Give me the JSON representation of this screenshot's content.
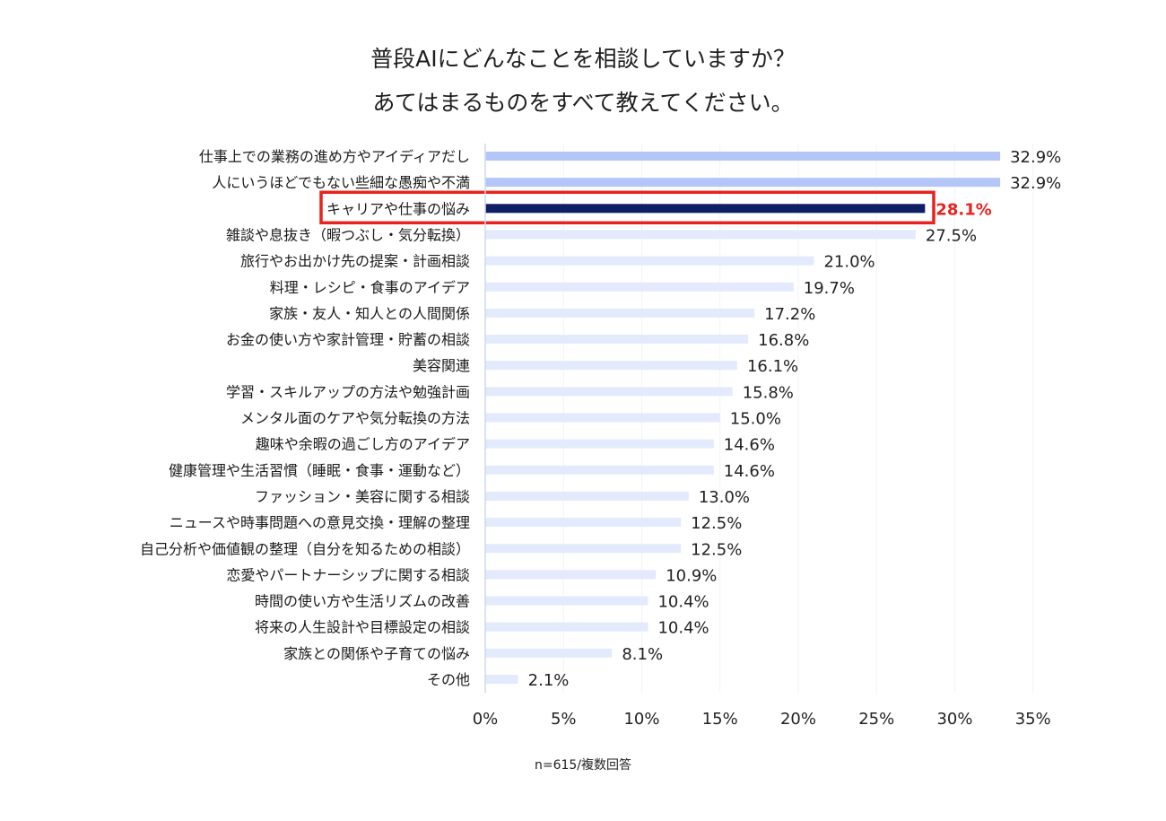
{
  "title_lines": [
    "普段AIにどんなことを相談していますか？",
    "あてはまるものをすべて教えてください。"
  ],
  "footnote": "n=615/複数回答",
  "colors": {
    "top_bar": "#b3c6f7",
    "other_bar": "#e3eafc",
    "highlight_bar": "#0f1f66",
    "highlight_box": "#e8231f",
    "highlight_text": "#e8231f",
    "axis": "#d0d8ee",
    "grid": "#f1f3f8"
  },
  "chart_data": {
    "type": "bar",
    "orientation": "horizontal",
    "categories": [
      "仕事上での業務の進め方やアイディアだし",
      "人にいうほどでもない些細な愚痴や不満",
      "キャリアや仕事の悩み",
      "雑談や息抜き（暇つぶし・気分転換）",
      "旅行やお出かけ先の提案・計画相談",
      "料理・レシピ・食事のアイデア",
      "家族・友人・知人との人間関係",
      "お金の使い方や家計管理・貯蓄の相談",
      "美容関連",
      "学習・スキルアップの方法や勉強計画",
      "メンタル面のケアや気分転換の方法",
      "趣味や余暇の過ごし方のアイデア",
      "健康管理や生活習慣（睡眠・食事・運動など）",
      "ファッション・美容に関する相談",
      "ニュースや時事問題への意見交換・理解の整理",
      "自己分析や価値観の整理（自分を知るための相談）",
      "恋愛やパートナーシップに関する相談",
      "時間の使い方や生活リズムの改善",
      "将来の人生設計や目標設定の相談",
      "家族との関係や子育ての悩み",
      "その他"
    ],
    "values": [
      32.9,
      32.9,
      28.1,
      27.5,
      21.0,
      19.7,
      17.2,
      16.8,
      16.1,
      15.8,
      15.0,
      14.6,
      14.6,
      13.0,
      12.5,
      12.5,
      10.9,
      10.4,
      10.4,
      8.1,
      2.1
    ],
    "value_labels": [
      "32.9%",
      "32.9%",
      "28.1%",
      "27.5%",
      "21.0%",
      "19.7%",
      "17.2%",
      "16.8%",
      "16.1%",
      "15.8%",
      "15.0%",
      "14.6%",
      "14.6%",
      "13.0%",
      "12.5%",
      "12.5%",
      "10.9%",
      "10.4%",
      "10.4%",
      "8.1%",
      "2.1%"
    ],
    "highlight_index": 2,
    "top_indices": [
      0,
      1
    ],
    "xlim": [
      0,
      35
    ],
    "xticks": [
      0,
      5,
      10,
      15,
      20,
      25,
      30,
      35
    ],
    "xtick_labels": [
      "0%",
      "5%",
      "10%",
      "15%",
      "20%",
      "25%",
      "30%",
      "35%"
    ],
    "grid": true
  }
}
